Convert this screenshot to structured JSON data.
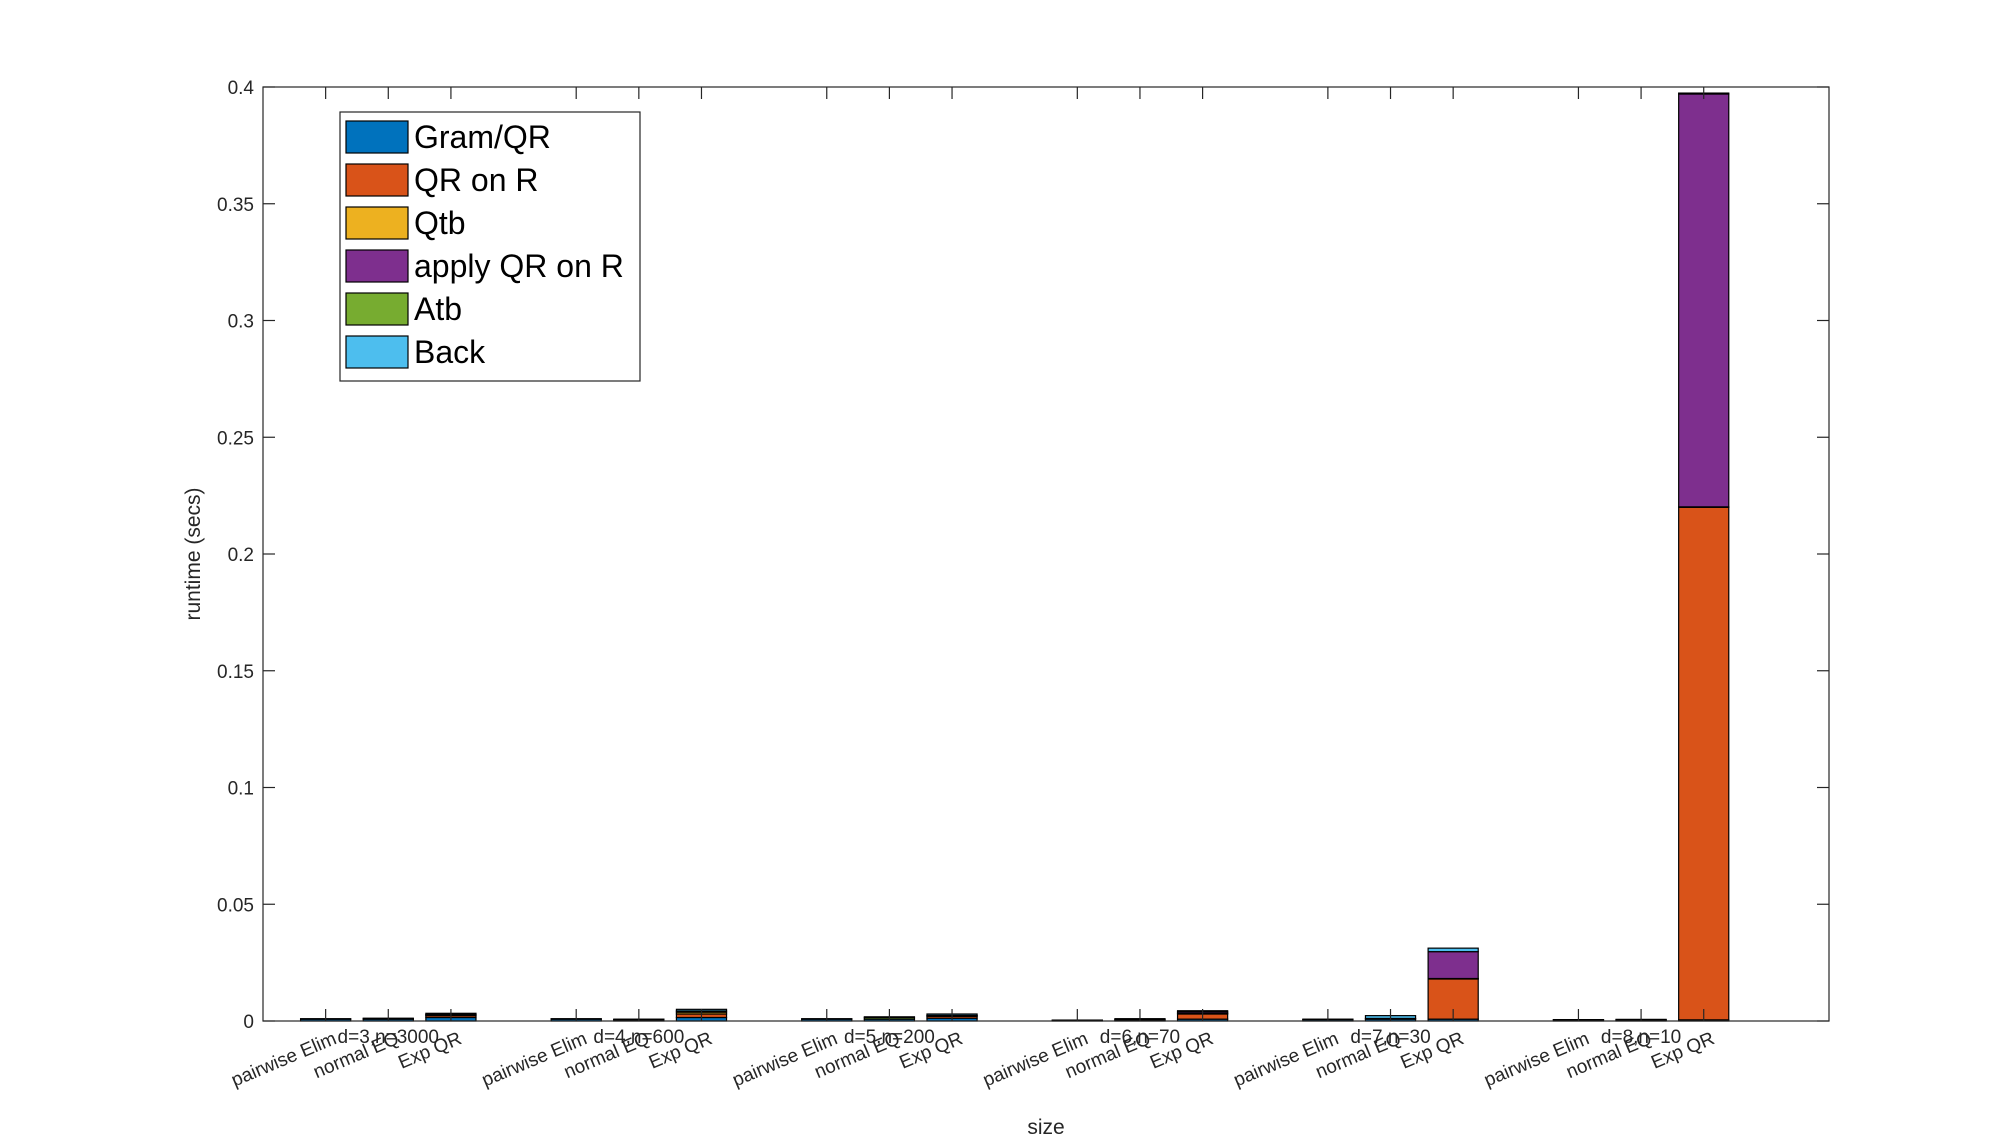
{
  "chart_data": {
    "type": "bar",
    "stacked": true,
    "title": "",
    "xlabel": "size",
    "ylabel": "runtime (secs)",
    "ylim": [
      0,
      0.4
    ],
    "yticks": [
      "0",
      "0.05",
      "0.1",
      "0.15",
      "0.2",
      "0.25",
      "0.3",
      "0.35",
      "0.4"
    ],
    "grid": false,
    "legend_position": "top-left",
    "groups": [
      "d=3,n=3000",
      "d=4,n=600",
      "d=5,n=200",
      "d=6,n=70",
      "d=7,n=30",
      "d=8,n=10"
    ],
    "methods": [
      "pairwise Elim",
      "normal EQ",
      "Exp QR"
    ],
    "series": [
      {
        "name": "Gram/QR",
        "color": "#0072BD",
        "values": [
          [
            0.0008,
            0.0008,
            0.0015
          ],
          [
            0.0008,
            0.0005,
            0.0015
          ],
          [
            0.0008,
            0.0008,
            0.0012
          ],
          [
            0.0003,
            0.0004,
            0.0008
          ],
          [
            0.0006,
            0.0008,
            0.0008
          ],
          [
            0.0005,
            0.0004,
            0.0005
          ]
        ]
      },
      {
        "name": "QR on R",
        "color": "#D95319",
        "values": [
          [
            0,
            0,
            0.0008
          ],
          [
            0,
            0,
            0.0015
          ],
          [
            0,
            0,
            0.0008
          ],
          [
            0,
            0,
            0.0022
          ],
          [
            0,
            0,
            0.0172
          ],
          [
            0,
            0,
            0.2195
          ]
        ]
      },
      {
        "name": "Qtb",
        "color": "#EDB120",
        "values": [
          [
            0,
            0,
            0.0003
          ],
          [
            0,
            0,
            0.0008
          ],
          [
            0,
            0,
            0.0002
          ],
          [
            0,
            0,
            0.0003
          ],
          [
            0,
            0,
            0.0002
          ],
          [
            0,
            0,
            0.0002
          ]
        ]
      },
      {
        "name": "apply QR on R",
        "color": "#7E2F8E",
        "values": [
          [
            0,
            0,
            0.0002
          ],
          [
            0,
            0,
            0.0005
          ],
          [
            0,
            0,
            0.0002
          ],
          [
            0,
            0,
            0.0006
          ],
          [
            0,
            0,
            0.0115
          ],
          [
            0,
            0,
            0.1768
          ]
        ]
      },
      {
        "name": "Atb",
        "color": "#77AC30",
        "values": [
          [
            0,
            0.0002,
            0
          ],
          [
            0,
            0.0001,
            0
          ],
          [
            0,
            0.0007,
            0
          ],
          [
            0,
            0.0002,
            0
          ],
          [
            0,
            0.0003,
            0
          ],
          [
            0,
            0.0001,
            0
          ]
        ]
      },
      {
        "name": "Back",
        "color": "#4DBEEE",
        "values": [
          [
            0.0002,
            0.0002,
            0.0005
          ],
          [
            0.0002,
            0.0002,
            0.0007
          ],
          [
            0.0002,
            0.0003,
            0.0006
          ],
          [
            0.0001,
            0.0004,
            0.0005
          ],
          [
            0.0002,
            0.0012,
            0.0015
          ],
          [
            0.0001,
            0.0002,
            0.0004
          ]
        ]
      }
    ]
  }
}
